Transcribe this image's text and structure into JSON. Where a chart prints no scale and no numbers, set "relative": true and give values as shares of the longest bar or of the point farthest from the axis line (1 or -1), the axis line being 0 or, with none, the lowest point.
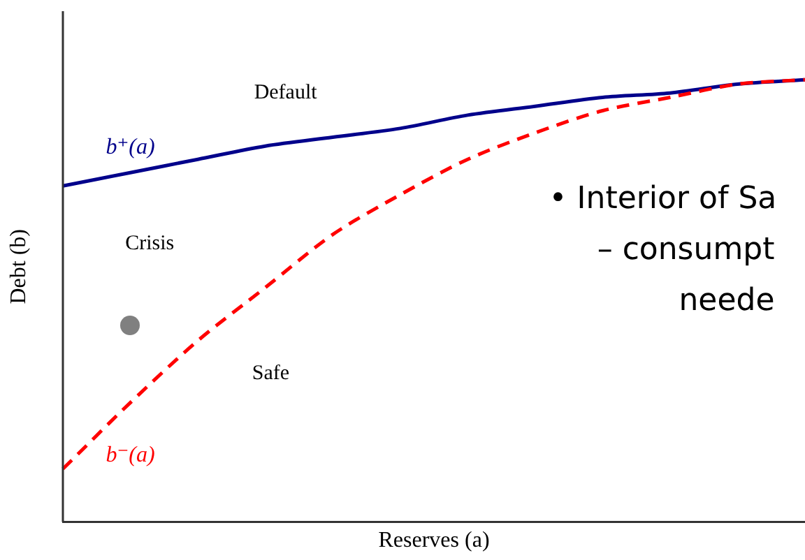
{
  "chart_data": {
    "type": "line",
    "relative": true,
    "xlabel": "Reserves (a)",
    "ylabel": "Debt (b)",
    "categories": [
      null,
      null,
      null,
      null,
      null,
      null,
      null,
      null,
      null,
      null,
      null,
      null
    ],
    "series": [
      {
        "name": "b⁺(a)",
        "color": "#00008b",
        "line_style": "solid",
        "values": [
          0.76,
          0.79,
          0.82,
          0.85,
          0.87,
          0.89,
          0.92,
          0.94,
          0.96,
          0.97,
          0.99,
          1
        ]
      },
      {
        "name": "b⁻(a)",
        "color": "#ff0000",
        "line_style": "dashed",
        "values": [
          0.12,
          0.27,
          0.41,
          0.53,
          0.65,
          0.74,
          0.82,
          0.88,
          0.93,
          0.96,
          0.99,
          1
        ]
      }
    ],
    "annotations": [
      "Default",
      "Crisis",
      "Safe",
      "• Interior of Sa",
      "– consumpt",
      "neede"
    ],
    "marker": "none",
    "grid": false,
    "legend": false
  }
}
